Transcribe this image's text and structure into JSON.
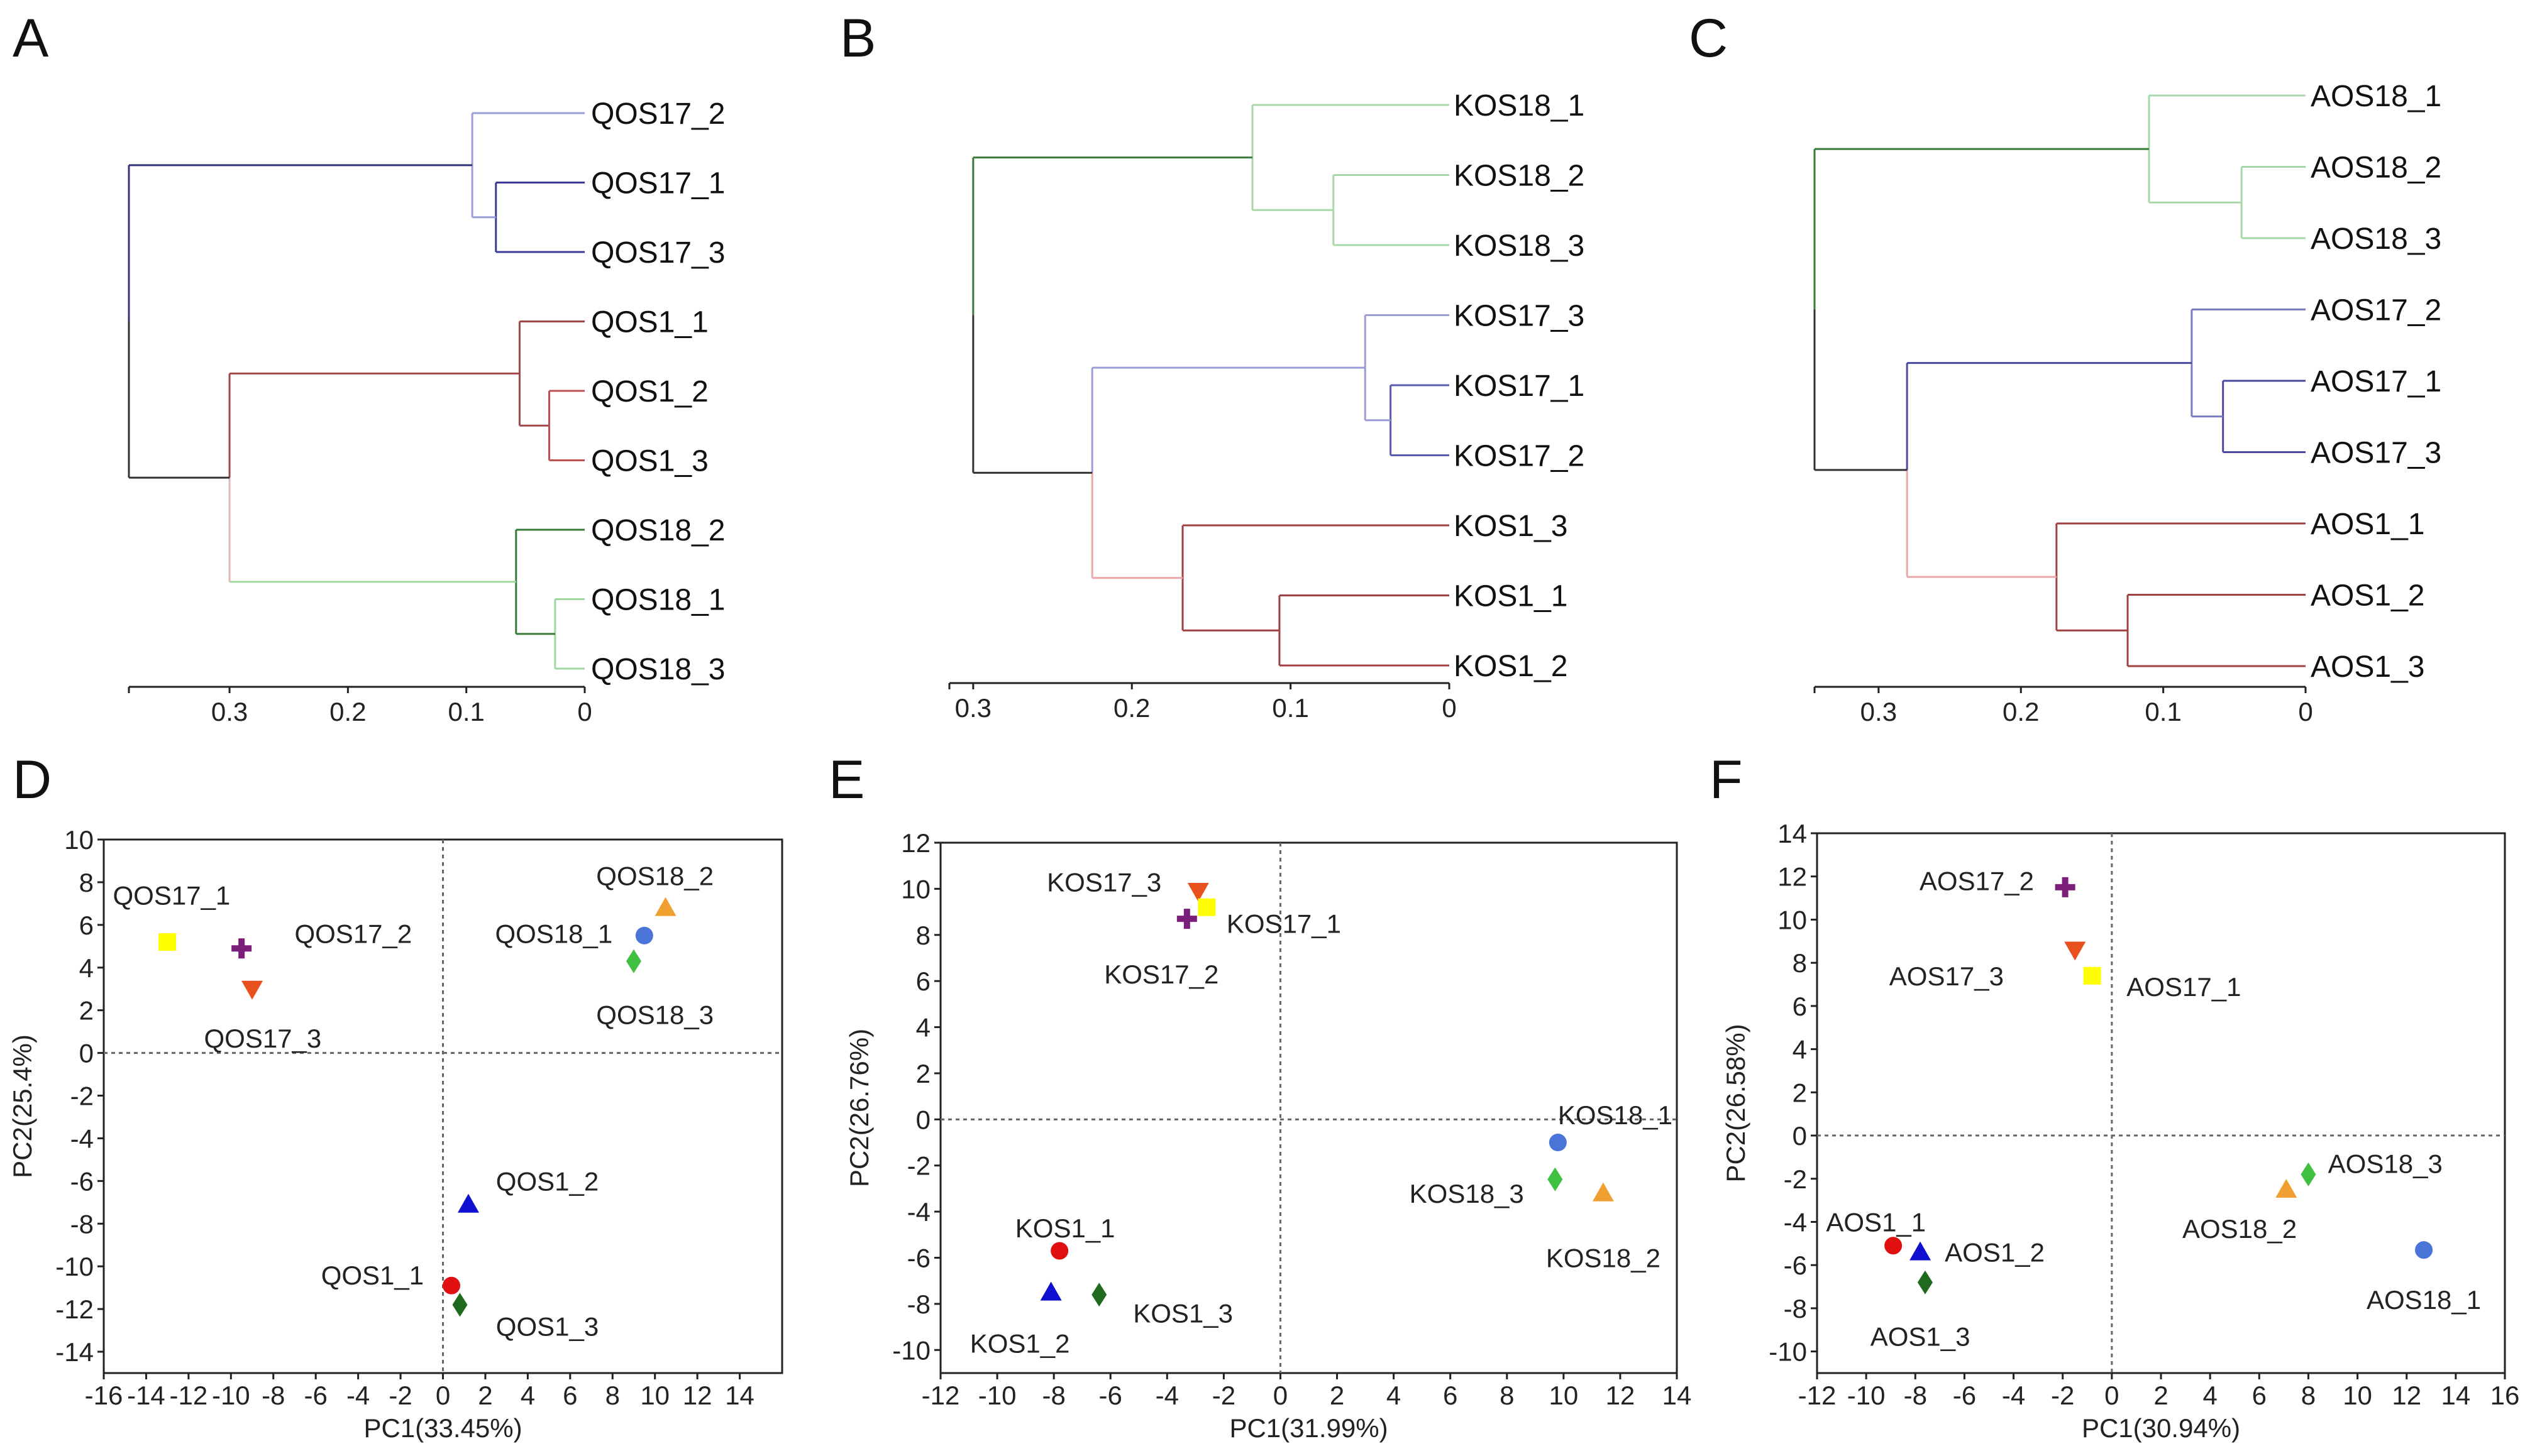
{
  "chart_data": [
    {
      "type": "dendrogram",
      "panel_label": "A",
      "leaves": [
        "QOS17_2",
        "QOS17_1",
        "QOS17_3",
        "QOS1_1",
        "QOS1_2",
        "QOS1_3",
        "QOS18_2",
        "QOS18_1",
        "QOS18_3"
      ],
      "root_height": 0.385,
      "axis": {
        "max": 0.385,
        "ticks": [
          {
            "v": 0.3,
            "t": "0.3"
          },
          {
            "v": 0.2,
            "t": "0.2"
          },
          {
            "v": 0.1,
            "t": "0.1"
          },
          {
            "v": 0,
            "t": "0"
          }
        ]
      },
      "merges": [
        {
          "id": "a1",
          "a": "QOS17_1",
          "b": "QOS17_3",
          "h": 0.075,
          "color": "#3a3a9a"
        },
        {
          "id": "a2",
          "a": "QOS17_2",
          "b": "a1",
          "h": 0.095,
          "color": "#9c9cd8"
        },
        {
          "id": "a3",
          "a": "QOS1_2",
          "b": "QOS1_3",
          "h": 0.03,
          "color": "#c05050"
        },
        {
          "id": "a4",
          "a": "QOS1_1",
          "b": "a3",
          "h": 0.055,
          "color": "#a04848"
        },
        {
          "id": "a5",
          "a": "QOS18_1",
          "b": "QOS18_3",
          "h": 0.025,
          "color": "#a0d8a0"
        },
        {
          "id": "a6",
          "a": "QOS18_2",
          "b": "a5",
          "h": 0.058,
          "color": "#3a7a3a"
        },
        {
          "id": "a7",
          "a": "a4",
          "b": "a6",
          "h": 0.3,
          "color": "#a04848",
          "color_b": "#a0d8a0",
          "color_link": "#e0b8b8"
        },
        {
          "id": "a8",
          "a": "a2",
          "b": "a7",
          "h": 0.385,
          "color": "#33337a",
          "color_b": "#333333"
        }
      ]
    },
    {
      "type": "dendrogram",
      "panel_label": "B",
      "leaves": [
        "KOS18_1",
        "KOS18_2",
        "KOS18_3",
        "KOS17_3",
        "KOS17_1",
        "KOS17_2",
        "KOS1_3",
        "KOS1_1",
        "KOS1_2"
      ],
      "root_height": 0.3,
      "axis": {
        "max": 0.315,
        "ticks": [
          {
            "v": 0.3,
            "t": "0.3"
          },
          {
            "v": 0.2,
            "t": "0.2"
          },
          {
            "v": 0.1,
            "t": "0.1"
          },
          {
            "v": 0,
            "t": "0"
          }
        ]
      },
      "merges": [
        {
          "id": "b1",
          "a": "KOS18_2",
          "b": "KOS18_3",
          "h": 0.073,
          "color": "#a8d8a8"
        },
        {
          "id": "b2",
          "a": "KOS18_1",
          "b": "b1",
          "h": 0.124,
          "color": "#a8d8a8"
        },
        {
          "id": "b3",
          "a": "KOS17_1",
          "b": "KOS17_2",
          "h": 0.037,
          "color": "#5a5ab0"
        },
        {
          "id": "b4",
          "a": "KOS17_3",
          "b": "b3",
          "h": 0.053,
          "color": "#9c9cd8"
        },
        {
          "id": "b5",
          "a": "KOS1_1",
          "b": "KOS1_2",
          "h": 0.107,
          "color": "#a04040"
        },
        {
          "id": "b6",
          "a": "KOS1_3",
          "b": "b5",
          "h": 0.168,
          "color": "#a04040"
        },
        {
          "id": "b7",
          "a": "b4",
          "b": "b6",
          "h": 0.225,
          "color": "#9c9cd8",
          "color_b": "#e8a8a8"
        },
        {
          "id": "b8",
          "a": "b2",
          "b": "b7",
          "h": 0.3,
          "color": "#3a7a3a",
          "color_b": "#333333"
        }
      ]
    },
    {
      "type": "dendrogram",
      "panel_label": "C",
      "leaves": [
        "AOS18_1",
        "AOS18_2",
        "AOS18_3",
        "AOS17_2",
        "AOS17_1",
        "AOS17_3",
        "AOS1_1",
        "AOS1_2",
        "AOS1_3"
      ],
      "root_height": 0.345,
      "axis": {
        "max": 0.345,
        "ticks": [
          {
            "v": 0.3,
            "t": "0.3"
          },
          {
            "v": 0.2,
            "t": "0.2"
          },
          {
            "v": 0.1,
            "t": "0.1"
          },
          {
            "v": 0,
            "t": "0"
          }
        ]
      },
      "merges": [
        {
          "id": "c1",
          "a": "AOS18_2",
          "b": "AOS18_3",
          "h": 0.045,
          "color": "#a8d8a8"
        },
        {
          "id": "c2",
          "a": "AOS18_1",
          "b": "c1",
          "h": 0.11,
          "color": "#a8d8a8"
        },
        {
          "id": "c3",
          "a": "AOS17_1",
          "b": "AOS17_3",
          "h": 0.058,
          "color": "#4a4aa0"
        },
        {
          "id": "c4",
          "a": "AOS17_2",
          "b": "c3",
          "h": 0.08,
          "color": "#7a7ac0"
        },
        {
          "id": "c5",
          "a": "AOS1_2",
          "b": "AOS1_3",
          "h": 0.125,
          "color": "#a04040"
        },
        {
          "id": "c6",
          "a": "AOS1_1",
          "b": "c5",
          "h": 0.175,
          "color": "#a04040"
        },
        {
          "id": "c7",
          "a": "c4",
          "b": "c6",
          "h": 0.28,
          "color": "#4a4aa0",
          "color_b": "#e8a8a8"
        },
        {
          "id": "c8",
          "a": "c2",
          "b": "c7",
          "h": 0.345,
          "color": "#3a7a3a",
          "color_b": "#333333"
        }
      ]
    },
    {
      "type": "scatter",
      "panel_label": "D",
      "xlabel": "PC1(33.45%)",
      "ylabel": "PC2(25.4%)",
      "xlim": [
        -16,
        16
      ],
      "ylim": [
        -15,
        10
      ],
      "xticks": [
        -16,
        -14,
        -12,
        -10,
        -8,
        -6,
        -4,
        -2,
        0,
        2,
        4,
        6,
        8,
        10,
        12,
        14
      ],
      "yticks": [
        -14,
        -12,
        -10,
        -8,
        -6,
        -4,
        -2,
        0,
        2,
        4,
        6,
        8,
        10
      ],
      "points": [
        {
          "label": "QOS17_1",
          "x": -13.0,
          "y": 5.2,
          "shape": "square",
          "color": "#ffff00",
          "lx": -12.8,
          "ly": 7.4,
          "anchor": "middle"
        },
        {
          "label": "QOS17_2",
          "x": -9.5,
          "y": 4.9,
          "shape": "plus",
          "color": "#7b1f7b",
          "lx": -7.0,
          "ly": 5.6,
          "anchor": "start"
        },
        {
          "label": "QOS17_3",
          "x": -9.0,
          "y": 3.0,
          "shape": "tri-down",
          "color": "#e8501e",
          "lx": -8.5,
          "ly": 0.7,
          "anchor": "middle"
        },
        {
          "label": "QOS18_2",
          "x": 10.5,
          "y": 6.8,
          "shape": "tri-up",
          "color": "#f0a030",
          "lx": 10.0,
          "ly": 8.3,
          "anchor": "middle"
        },
        {
          "label": "QOS18_1",
          "x": 9.5,
          "y": 5.5,
          "shape": "circle",
          "color": "#4a74d8",
          "lx": 8.0,
          "ly": 5.6,
          "anchor": "end"
        },
        {
          "label": "QOS18_3",
          "x": 9.0,
          "y": 4.3,
          "shape": "diamond",
          "color": "#40c040",
          "lx": 10.0,
          "ly": 1.8,
          "anchor": "middle"
        },
        {
          "label": "QOS1_2",
          "x": 1.2,
          "y": -7.1,
          "shape": "tri-up",
          "color": "#1010d0",
          "lx": 2.5,
          "ly": -6.0,
          "anchor": "start"
        },
        {
          "label": "QOS1_1",
          "x": 0.4,
          "y": -10.9,
          "shape": "circle",
          "color": "#e01010",
          "lx": -0.9,
          "ly": -10.4,
          "anchor": "end"
        },
        {
          "label": "QOS1_3",
          "x": 0.8,
          "y": -11.8,
          "shape": "diamond",
          "color": "#206a20",
          "lx": 2.5,
          "ly": -12.8,
          "anchor": "start"
        }
      ]
    },
    {
      "type": "scatter",
      "panel_label": "E",
      "xlabel": "PC1(31.99%)",
      "ylabel": "PC2(26.76%)",
      "xlim": [
        -12,
        14
      ],
      "ylim": [
        -11,
        12
      ],
      "xticks": [
        -12,
        -10,
        -8,
        -6,
        -4,
        -2,
        0,
        2,
        4,
        6,
        8,
        10,
        12,
        14
      ],
      "yticks": [
        -10,
        -8,
        -6,
        -4,
        -2,
        0,
        2,
        4,
        6,
        8,
        10,
        12
      ],
      "points": [
        {
          "label": "KOS17_3",
          "x": -2.9,
          "y": 9.9,
          "shape": "tri-down",
          "color": "#e8501e",
          "lx": -4.2,
          "ly": 10.3,
          "anchor": "end"
        },
        {
          "label": "KOS17_1",
          "x": -2.6,
          "y": 9.2,
          "shape": "square",
          "color": "#ffff00",
          "lx": -1.9,
          "ly": 8.5,
          "anchor": "start"
        },
        {
          "label": "KOS17_2",
          "x": -3.3,
          "y": 8.7,
          "shape": "plus",
          "color": "#7b1f7b",
          "lx": -4.2,
          "ly": 6.3,
          "anchor": "middle"
        },
        {
          "label": "KOS18_1",
          "x": 9.8,
          "y": -1.0,
          "shape": "circle",
          "color": "#4a74d8",
          "lx": 9.8,
          "ly": 0.2,
          "anchor": "start"
        },
        {
          "label": "KOS18_3",
          "x": 9.7,
          "y": -2.6,
          "shape": "diamond",
          "color": "#40c040",
          "lx": 8.6,
          "ly": -3.2,
          "anchor": "end"
        },
        {
          "label": "KOS18_2",
          "x": 11.4,
          "y": -3.2,
          "shape": "tri-up",
          "color": "#f0a030",
          "lx": 11.4,
          "ly": -6.0,
          "anchor": "middle"
        },
        {
          "label": "KOS1_1",
          "x": -7.8,
          "y": -5.7,
          "shape": "circle",
          "color": "#e01010",
          "lx": -7.6,
          "ly": -4.7,
          "anchor": "middle"
        },
        {
          "label": "KOS1_2",
          "x": -8.1,
          "y": -7.5,
          "shape": "tri-up",
          "color": "#1010d0",
          "lx": -9.2,
          "ly": -9.7,
          "anchor": "middle"
        },
        {
          "label": "KOS1_3",
          "x": -6.4,
          "y": -7.6,
          "shape": "diamond",
          "color": "#206a20",
          "lx": -5.2,
          "ly": -8.4,
          "anchor": "start"
        }
      ]
    },
    {
      "type": "scatter",
      "panel_label": "F",
      "xlabel": "PC1(30.94%)",
      "ylabel": "PC2(26.58%)",
      "xlim": [
        -12,
        16
      ],
      "ylim": [
        -11,
        14
      ],
      "xticks": [
        -12,
        -10,
        -8,
        -6,
        -4,
        -2,
        0,
        2,
        4,
        6,
        8,
        10,
        12,
        14,
        16
      ],
      "yticks": [
        -10,
        -8,
        -6,
        -4,
        -2,
        0,
        2,
        4,
        6,
        8,
        10,
        12,
        14
      ],
      "points": [
        {
          "label": "AOS17_2",
          "x": -1.9,
          "y": 11.5,
          "shape": "plus",
          "color": "#7b1f7b",
          "lx": -5.5,
          "ly": 11.8,
          "anchor": "middle"
        },
        {
          "label": "AOS17_3",
          "x": -1.5,
          "y": 8.6,
          "shape": "tri-down",
          "color": "#e8501e",
          "lx": -4.4,
          "ly": 7.4,
          "anchor": "end"
        },
        {
          "label": "AOS17_1",
          "x": -0.8,
          "y": 7.4,
          "shape": "square",
          "color": "#ffff00",
          "lx": 0.6,
          "ly": 6.9,
          "anchor": "start"
        },
        {
          "label": "AOS18_3",
          "x": 8.0,
          "y": -1.8,
          "shape": "diamond",
          "color": "#40c040",
          "lx": 8.8,
          "ly": -1.3,
          "anchor": "start"
        },
        {
          "label": "AOS18_2",
          "x": 7.1,
          "y": -2.5,
          "shape": "tri-up",
          "color": "#f0a030",
          "lx": 5.2,
          "ly": -4.3,
          "anchor": "middle"
        },
        {
          "label": "AOS18_1",
          "x": 12.7,
          "y": -5.3,
          "shape": "circle",
          "color": "#4a74d8",
          "lx": 12.7,
          "ly": -7.6,
          "anchor": "middle"
        },
        {
          "label": "AOS1_1",
          "x": -8.9,
          "y": -5.1,
          "shape": "circle",
          "color": "#e01010",
          "lx": -9.6,
          "ly": -4.0,
          "anchor": "middle"
        },
        {
          "label": "AOS1_2",
          "x": -7.8,
          "y": -5.4,
          "shape": "tri-up",
          "color": "#1010d0",
          "lx": -6.8,
          "ly": -5.4,
          "anchor": "start"
        },
        {
          "label": "AOS1_3",
          "x": -7.6,
          "y": -6.8,
          "shape": "diamond",
          "color": "#206a20",
          "lx": -7.8,
          "ly": -9.3,
          "anchor": "middle"
        }
      ]
    }
  ]
}
